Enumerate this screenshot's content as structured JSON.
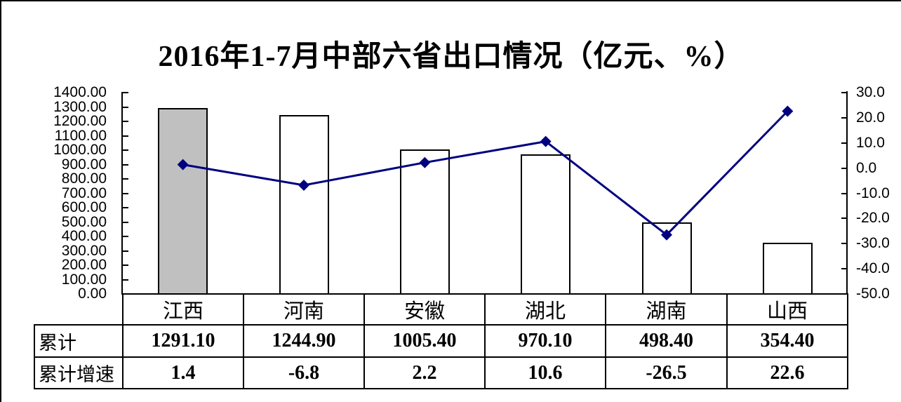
{
  "title": "2016年1-7月中部六省出口情况（亿元、%）",
  "chart_data": {
    "type": "combo-bar-line",
    "categories": [
      "江西",
      "河南",
      "安徽",
      "湖北",
      "湖南",
      "山西"
    ],
    "series": [
      {
        "name": "累计",
        "type": "bar",
        "axis": "left",
        "values": [
          1291.1,
          1244.9,
          1005.4,
          970.1,
          498.4,
          354.4
        ]
      },
      {
        "name": "累计增速",
        "type": "line",
        "axis": "right",
        "values": [
          1.4,
          -6.8,
          2.2,
          10.6,
          -26.5,
          22.6
        ]
      }
    ],
    "highlighted_category": "江西",
    "left_axis": {
      "min": 0,
      "max": 1400,
      "step": 100,
      "tick_labels": [
        "1400.00",
        "1300.00",
        "1200.00",
        "1100.00",
        "1000.00",
        "900.00",
        "800.00",
        "700.00",
        "600.00",
        "500.00",
        "400.00",
        "300.00",
        "200.00",
        "100.00",
        "0.00"
      ]
    },
    "right_axis": {
      "min": -50,
      "max": 30,
      "step": 10,
      "tick_labels": [
        "30.0",
        "20.0",
        "10.0",
        "0.0",
        "-10.0",
        "-20.0",
        "-30.0",
        "-40.0",
        "-50.0"
      ]
    },
    "grid": false,
    "legend": "none"
  },
  "table": {
    "category_row": [
      "江西",
      "河南",
      "安徽",
      "湖北",
      "湖南",
      "山西"
    ],
    "rows": [
      {
        "header": "累计",
        "values": [
          "1291.10",
          "1244.90",
          "1005.40",
          "970.10",
          "498.40",
          "354.40"
        ]
      },
      {
        "header": "累计增速",
        "values": [
          "1.4",
          "-6.8",
          "2.2",
          "10.6",
          "-26.5",
          "22.6"
        ]
      }
    ]
  },
  "colors": {
    "line": "#000080",
    "marker": "#000080",
    "bar_fill": "#FFFFFF",
    "bar_highlight_fill": "#C0C0C0",
    "bar_border": "#000000",
    "text": "#000000",
    "background": "#FFFFFF"
  }
}
